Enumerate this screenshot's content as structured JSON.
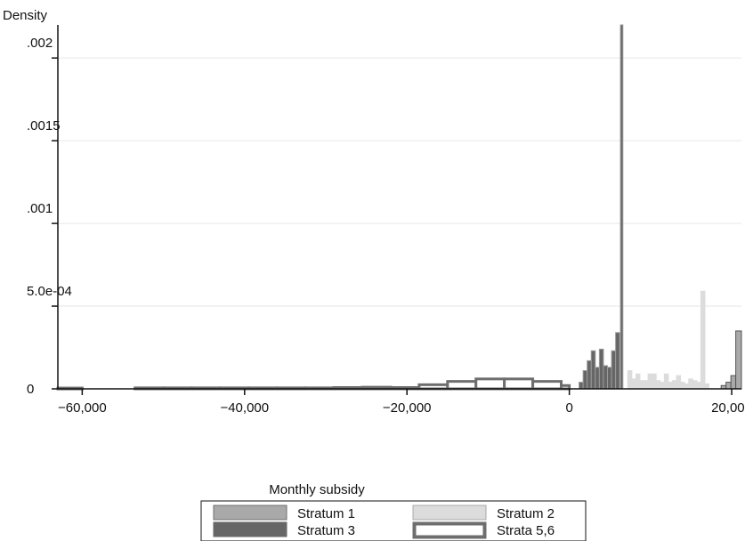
{
  "chart_data": {
    "type": "histogram",
    "title": "",
    "xlabel": "Monthly subsidy",
    "ylabel": "Density",
    "xlim": [
      -63000,
      21200
    ],
    "ylim": [
      0,
      0.0022
    ],
    "grid": "horizontal",
    "legend_position": "bottom",
    "x_ticks": [
      {
        "value": -60000,
        "label": "−60,000"
      },
      {
        "value": -40000,
        "label": "−40,000"
      },
      {
        "value": -20000,
        "label": "−20,000"
      },
      {
        "value": 0,
        "label": "0"
      },
      {
        "value": 20000,
        "label": "20,000"
      }
    ],
    "y_ticks": [
      {
        "value": 0,
        "label": "0"
      },
      {
        "value": 0.0005,
        "label": "5.0e-04"
      },
      {
        "value": 0.001,
        "label": ".001"
      },
      {
        "value": 0.0015,
        "label": ".0015"
      },
      {
        "value": 0.002,
        "label": ".002"
      }
    ],
    "series": [
      {
        "name": "Strata 5,6",
        "style": "outline",
        "color": "#6e6e6e",
        "fill": "#ffffff",
        "bins": [
          {
            "x0": -63000,
            "x1": -60000,
            "y": 5e-06
          },
          {
            "x0": -53500,
            "x1": -50000,
            "y": 6e-06
          },
          {
            "x0": -50000,
            "x1": -46500,
            "y": 6e-06
          },
          {
            "x0": -46500,
            "x1": -43000,
            "y": 6e-06
          },
          {
            "x0": -43000,
            "x1": -39500,
            "y": 6e-06
          },
          {
            "x0": -39500,
            "x1": -36000,
            "y": 6e-06
          },
          {
            "x0": -36000,
            "x1": -32500,
            "y": 6e-06
          },
          {
            "x0": -32500,
            "x1": -29000,
            "y": 6e-06
          },
          {
            "x0": -29000,
            "x1": -25500,
            "y": 8e-06
          },
          {
            "x0": -25500,
            "x1": -22000,
            "y": 1e-05
          },
          {
            "x0": -22000,
            "x1": -18500,
            "y": 8e-06
          },
          {
            "x0": -18500,
            "x1": -15000,
            "y": 2.5e-05
          },
          {
            "x0": -15000,
            "x1": -11500,
            "y": 4.5e-05
          },
          {
            "x0": -11500,
            "x1": -8000,
            "y": 6e-05
          },
          {
            "x0": -8000,
            "x1": -4500,
            "y": 6e-05
          },
          {
            "x0": -4500,
            "x1": -1000,
            "y": 4.5e-05
          },
          {
            "x0": -1000,
            "x1": 0,
            "y": 2e-05
          }
        ]
      },
      {
        "name": "Stratum 3",
        "style": "filled",
        "color": "#666666",
        "bins": [
          {
            "x0": 1200,
            "x1": 1700,
            "y": 4e-05
          },
          {
            "x0": 1700,
            "x1": 2200,
            "y": 0.00011
          },
          {
            "x0": 2200,
            "x1": 2700,
            "y": 0.00017
          },
          {
            "x0": 2700,
            "x1": 3200,
            "y": 0.00023
          },
          {
            "x0": 3200,
            "x1": 3700,
            "y": 0.00013
          },
          {
            "x0": 3700,
            "x1": 4200,
            "y": 0.00024
          },
          {
            "x0": 4200,
            "x1": 4700,
            "y": 0.00014
          },
          {
            "x0": 4700,
            "x1": 5200,
            "y": 0.00013
          },
          {
            "x0": 5200,
            "x1": 5700,
            "y": 0.00023
          },
          {
            "x0": 5700,
            "x1": 6200,
            "y": 0.00034
          },
          {
            "x0": 6300,
            "x1": 6600,
            "y": 0.0022
          }
        ]
      },
      {
        "name": "Stratum 2",
        "style": "filled",
        "color": "#dcdcdc",
        "bins": [
          {
            "x0": 7200,
            "x1": 7700,
            "y": 0.00011
          },
          {
            "x0": 7700,
            "x1": 8200,
            "y": 6e-05
          },
          {
            "x0": 8200,
            "x1": 8700,
            "y": 9e-05
          },
          {
            "x0": 8700,
            "x1": 9200,
            "y": 5e-05
          },
          {
            "x0": 9200,
            "x1": 9700,
            "y": 5e-05
          },
          {
            "x0": 9700,
            "x1": 10200,
            "y": 9e-05
          },
          {
            "x0": 10200,
            "x1": 10700,
            "y": 9e-05
          },
          {
            "x0": 10700,
            "x1": 11200,
            "y": 5e-05
          },
          {
            "x0": 11200,
            "x1": 11700,
            "y": 4e-05
          },
          {
            "x0": 11700,
            "x1": 12200,
            "y": 9e-05
          },
          {
            "x0": 12200,
            "x1": 12700,
            "y": 4e-05
          },
          {
            "x0": 12700,
            "x1": 13200,
            "y": 5e-05
          },
          {
            "x0": 13200,
            "x1": 13700,
            "y": 8e-05
          },
          {
            "x0": 13700,
            "x1": 14200,
            "y": 4e-05
          },
          {
            "x0": 14200,
            "x1": 14700,
            "y": 3e-05
          },
          {
            "x0": 14700,
            "x1": 15200,
            "y": 6e-05
          },
          {
            "x0": 15200,
            "x1": 15700,
            "y": 5e-05
          },
          {
            "x0": 15700,
            "x1": 16200,
            "y": 4e-05
          },
          {
            "x0": 16200,
            "x1": 16700,
            "y": 0.00059
          },
          {
            "x0": 16700,
            "x1": 17200,
            "y": 3e-05
          }
        ]
      },
      {
        "name": "Stratum 1",
        "style": "filled",
        "color": "#a9a9a9",
        "bins": [
          {
            "x0": 18700,
            "x1": 19300,
            "y": 2e-05
          },
          {
            "x0": 19300,
            "x1": 19900,
            "y": 4e-05
          },
          {
            "x0": 19900,
            "x1": 20500,
            "y": 8e-05
          },
          {
            "x0": 20500,
            "x1": 21200,
            "y": 0.00035
          }
        ]
      }
    ],
    "legend": [
      {
        "name": "Stratum 1",
        "style": "filled",
        "color": "#a9a9a9",
        "edge": "#6e6e6e"
      },
      {
        "name": "Stratum 2",
        "style": "filled",
        "color": "#dcdcdc",
        "edge": "#a9a9a9"
      },
      {
        "name": "Stratum 3",
        "style": "filled",
        "color": "#666666",
        "edge": "#666666"
      },
      {
        "name": "Strata 5,6",
        "style": "outline",
        "color": "#6e6e6e",
        "edge": "#6e6e6e"
      }
    ]
  }
}
